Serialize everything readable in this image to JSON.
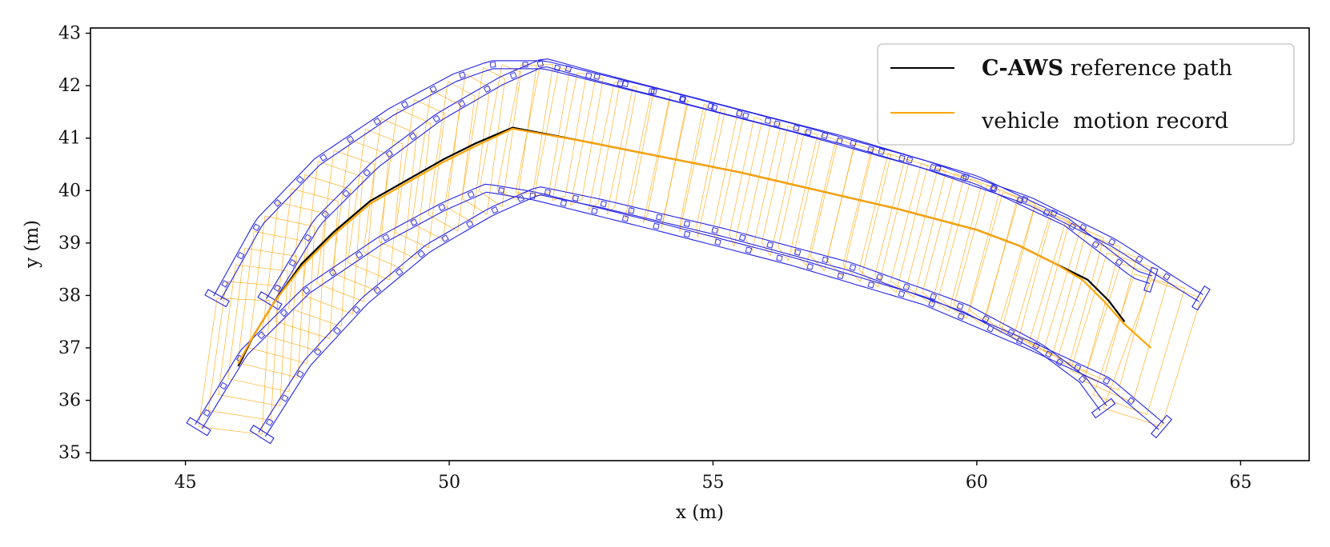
{
  "chart_data": {
    "type": "line",
    "title": "",
    "xlabel": "x (m)",
    "ylabel": "y (m)",
    "xlim": [
      43.2,
      66.3
    ],
    "ylim": [
      34.85,
      43.1
    ],
    "xticks": [
      45,
      50,
      55,
      60,
      65
    ],
    "yticks": [
      35,
      36,
      37,
      38,
      39,
      40,
      41,
      42,
      43
    ],
    "grid": false,
    "legend_position": "top-right",
    "colors": {
      "reference": "#000000",
      "motion": "#ffa500",
      "footprint": "#2323e6",
      "trace": "#ffa500",
      "axes": "#000000",
      "legend_border": "#cccccc"
    },
    "legend": {
      "reference_bold": "C-AWS",
      "reference_rest": " reference path",
      "motion": "vehicle  motion record"
    },
    "series": [
      {
        "name": "C-AWS reference path",
        "x": [
          46.0,
          46.3,
          46.7,
          47.2,
          47.8,
          48.5,
          49.2,
          49.9,
          50.5,
          51.2,
          52.5,
          54.0,
          55.5,
          57.0,
          58.5,
          60.0,
          60.8,
          61.5,
          62.1,
          62.5,
          62.8
        ],
        "y": [
          36.65,
          37.25,
          37.9,
          38.6,
          39.2,
          39.8,
          40.2,
          40.6,
          40.9,
          41.2,
          40.95,
          40.65,
          40.35,
          40.0,
          39.65,
          39.25,
          38.95,
          38.6,
          38.3,
          37.9,
          37.5
        ]
      },
      {
        "name": "vehicle motion record",
        "x": [
          46.0,
          46.3,
          46.7,
          47.2,
          47.8,
          48.5,
          49.2,
          49.9,
          50.5,
          51.2,
          52.5,
          54.0,
          55.5,
          57.0,
          58.5,
          60.0,
          60.8,
          61.5,
          62.0,
          62.4,
          62.8,
          63.3
        ],
        "y": [
          36.7,
          37.25,
          37.9,
          38.55,
          39.15,
          39.75,
          40.15,
          40.55,
          40.85,
          41.18,
          40.95,
          40.65,
          40.35,
          40.0,
          39.65,
          39.25,
          38.95,
          38.6,
          38.3,
          37.9,
          37.45,
          37.0
        ]
      }
    ],
    "vehicle_outline_tracks": [
      {
        "name": "front-left wheel track",
        "x": [
          45.6,
          46.4,
          47.5,
          48.9,
          50.1,
          50.8,
          51.8,
          54.0,
          56.5,
          59.0,
          61.0,
          62.6,
          64.0,
          64.25
        ],
        "y": [
          37.95,
          39.4,
          40.55,
          41.5,
          42.15,
          42.4,
          42.4,
          41.85,
          41.2,
          40.5,
          39.8,
          39.0,
          38.1,
          37.95
        ]
      },
      {
        "name": "front-right wheel track",
        "x": [
          46.6,
          47.5,
          48.6,
          49.8,
          51.0,
          51.8,
          52.7,
          55.0,
          57.5,
          60.0,
          61.7,
          63.0,
          63.3
        ],
        "y": [
          37.9,
          39.4,
          40.5,
          41.4,
          42.1,
          42.45,
          42.2,
          41.6,
          40.95,
          40.2,
          39.4,
          38.4,
          38.3
        ]
      },
      {
        "name": "rear-left wheel track",
        "x": [
          45.25,
          46.1,
          47.3,
          48.7,
          49.9,
          50.7,
          51.6,
          54.0,
          56.5,
          59.0,
          61.0,
          62.5,
          63.5
        ],
        "y": [
          35.5,
          36.9,
          38.1,
          39.05,
          39.7,
          40.05,
          39.9,
          39.3,
          38.65,
          37.9,
          37.05,
          36.35,
          35.5
        ]
      },
      {
        "name": "rear-right wheel track",
        "x": [
          46.45,
          47.3,
          48.4,
          49.6,
          50.8,
          51.7,
          52.9,
          55.2,
          57.6,
          59.8,
          61.2,
          62.0,
          62.4
        ],
        "y": [
          35.35,
          36.7,
          37.9,
          38.9,
          39.6,
          40.0,
          39.75,
          39.2,
          38.55,
          37.75,
          37.0,
          36.4,
          35.85
        ]
      }
    ]
  }
}
